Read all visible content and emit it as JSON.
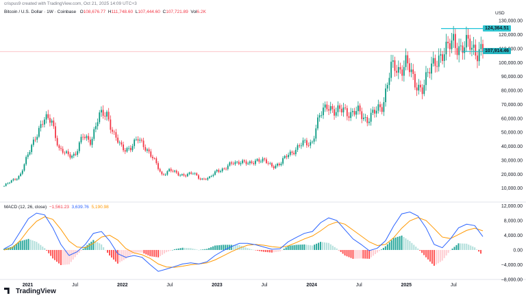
{
  "header": {
    "author_line": "crispus9 created with TradingView.com, Oct 21, 2025 14:09 UTC+3",
    "symbol": "Bitcoin / U.S. Dollar · 1W · Coinbase",
    "ohlc": {
      "open_label": "O",
      "open": "108,676.77",
      "high_label": "H",
      "high": "111,748.60",
      "low_label": "L",
      "low": "107,444.60",
      "close_label": "C",
      "close": "107,721.89",
      "vol_label": "Vol",
      "vol": "6.2K"
    }
  },
  "currency": "USD",
  "colors": {
    "up": "#089981",
    "down": "#f23645",
    "macd": "#2962ff",
    "signal": "#ff9800",
    "level": "#00bcd4",
    "cur": "#26b5c0"
  },
  "price_axis_labels": [
    "130,000.00",
    "120,000.00",
    "110,000.00",
    "100,000.00",
    "90,000.00",
    "80,000.00",
    "70,000.00",
    "60,000.00",
    "50,000.00",
    "40,000.00",
    "30,000.00",
    "20,000.00",
    "10,000.00"
  ],
  "price_tags": {
    "level": "124,364.51",
    "current": "107,914.46"
  },
  "macd_header": {
    "label": "MACD (12, 26, close)",
    "hist": "−1,561.23",
    "macd": "3,639.76",
    "signal": "5,190.98"
  },
  "macd_axis_labels": [
    "12,000.00",
    "8,000.00",
    "4,000.00",
    "0.00",
    "−4,000.00",
    "−8,000.00"
  ],
  "time_axis_labels": [
    "2021",
    "Jul",
    "2022",
    "Jul",
    "2023",
    "Jul",
    "2024",
    "Jul",
    "2025",
    "Jul"
  ],
  "logo_text": "TradingView",
  "chart_data": [
    {
      "type": "candlestick",
      "title": "Bitcoin / U.S. Dollar · 1W · Coinbase",
      "ylabel": "USD",
      "ylim": [
        0,
        135000
      ],
      "grid": false,
      "x_range": [
        "2020-10",
        "2025-10"
      ],
      "price_points": [
        [
          "2020-10",
          11500
        ],
        [
          "2020-12",
          19000
        ],
        [
          "2021-01",
          33000
        ],
        [
          "2021-02",
          48000
        ],
        [
          "2021-03",
          58000
        ],
        [
          "2021-04",
          60000
        ],
        [
          "2021-05",
          37000
        ],
        [
          "2021-06",
          34000
        ],
        [
          "2021-07",
          34000
        ],
        [
          "2021-08",
          47000
        ],
        [
          "2021-09",
          44000
        ],
        [
          "2021-10",
          61000
        ],
        [
          "2021-11",
          64000
        ],
        [
          "2021-12",
          47000
        ],
        [
          "2022-01",
          38000
        ],
        [
          "2022-02",
          39000
        ],
        [
          "2022-03",
          45000
        ],
        [
          "2022-04",
          39000
        ],
        [
          "2022-05",
          30000
        ],
        [
          "2022-06",
          19500
        ],
        [
          "2022-07",
          23000
        ],
        [
          "2022-08",
          20000
        ],
        [
          "2022-09",
          19500
        ],
        [
          "2022-10",
          20500
        ],
        [
          "2022-11",
          16500
        ],
        [
          "2022-12",
          16800
        ],
        [
          "2023-01",
          23000
        ],
        [
          "2023-02",
          23500
        ],
        [
          "2023-03",
          28500
        ],
        [
          "2023-04",
          29000
        ],
        [
          "2023-05",
          27000
        ],
        [
          "2023-06",
          30500
        ],
        [
          "2023-07",
          29200
        ],
        [
          "2023-08",
          26000
        ],
        [
          "2023-09",
          27000
        ],
        [
          "2023-10",
          34500
        ],
        [
          "2023-11",
          37700
        ],
        [
          "2023-12",
          42500
        ],
        [
          "2024-01",
          42500
        ],
        [
          "2024-02",
          61000
        ],
        [
          "2024-03",
          71000
        ],
        [
          "2024-04",
          63000
        ],
        [
          "2024-05",
          67500
        ],
        [
          "2024-06",
          62700
        ],
        [
          "2024-07",
          65000
        ],
        [
          "2024-08",
          59000
        ],
        [
          "2024-09",
          64000
        ],
        [
          "2024-10",
          70000
        ],
        [
          "2024-11",
          96000
        ],
        [
          "2024-12",
          94000
        ],
        [
          "2025-01",
          102000
        ],
        [
          "2025-02",
          84000
        ],
        [
          "2025-03",
          82500
        ],
        [
          "2025-04",
          94000
        ],
        [
          "2025-05",
          104500
        ],
        [
          "2025-06",
          107000
        ],
        [
          "2025-07",
          117000
        ],
        [
          "2025-08",
          108500
        ],
        [
          "2025-09",
          114000
        ],
        [
          "2025-10",
          107914
        ]
      ],
      "level_line": 124364.51,
      "current_price": 107914.46
    },
    {
      "type": "line",
      "title": "MACD (12, 26, close)",
      "ylim": [
        -8000,
        13000
      ],
      "series": [
        {
          "name": "MACD",
          "values": [
            300,
            1500,
            5000,
            8500,
            10000,
            9500,
            6000,
            1500,
            -1500,
            -500,
            1500,
            4500,
            5000,
            2500,
            -1000,
            -2000,
            -1500,
            -2000,
            -4000,
            -5800,
            -5200,
            -4500,
            -3800,
            -3500,
            -3800,
            -3200,
            -1500,
            -200,
            900,
            1800,
            1800,
            1400,
            800,
            200,
            300,
            2200,
            3400,
            4500,
            5000,
            7400,
            8700,
            8000,
            5500,
            3000,
            1500,
            -200,
            500,
            2500,
            6500,
            9800,
            10300,
            9200,
            6000,
            1500,
            600,
            3000,
            6000,
            7000,
            6600,
            3640
          ]
        },
        {
          "name": "Signal",
          "values": [
            0,
            600,
            2600,
            5500,
            7800,
            9000,
            8300,
            5600,
            2400,
            800,
            600,
            1800,
            3500,
            4000,
            2700,
            400,
            -800,
            -1300,
            -2300,
            -3800,
            -4600,
            -4700,
            -4400,
            -4000,
            -3800,
            -3500,
            -2700,
            -1600,
            -500,
            500,
            1300,
            1500,
            1300,
            900,
            700,
            1100,
            2000,
            3000,
            3800,
            5200,
            6800,
            7600,
            7000,
            5400,
            3800,
            2200,
            1200,
            1500,
            3300,
            5900,
            7900,
            8800,
            8000,
            5800,
            3500,
            3100,
            4200,
            5300,
            5900,
            5191
          ]
        },
        {
          "name": "Histogram",
          "values": [
            300,
            900,
            2400,
            3000,
            2200,
            500,
            -2300,
            -4100,
            -3900,
            -1300,
            900,
            2700,
            1500,
            -1500,
            -3700,
            -2400,
            -700,
            -700,
            -1700,
            -2000,
            -600,
            200,
            600,
            500,
            0,
            300,
            1200,
            1400,
            1400,
            1300,
            500,
            -100,
            -500,
            -700,
            -400,
            1100,
            1400,
            1500,
            1200,
            2200,
            1900,
            400,
            -1500,
            -2400,
            -2300,
            -2400,
            -700,
            1000,
            3200,
            3900,
            2400,
            400,
            -2000,
            -4300,
            -2900,
            -100,
            1800,
            1700,
            700,
            -1561
          ]
        }
      ]
    }
  ]
}
